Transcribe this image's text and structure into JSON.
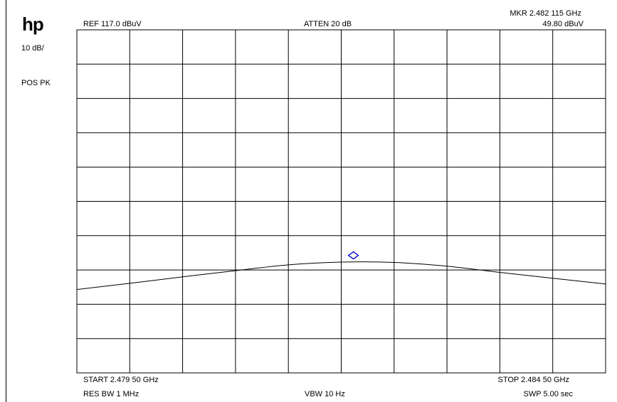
{
  "logo": "hp",
  "left_panel": {
    "scale": "10 dB/",
    "detector": "POS PK"
  },
  "header": {
    "ref_level": "REF  117.0 dBuV",
    "attenuation": "ATTEN 20 dB",
    "marker_freq": "MKR 2.482 115 GHz",
    "marker_level": "49.80 dBuV"
  },
  "footer": {
    "start": "START 2.479 50 GHz",
    "stop": "STOP 2.484 50 GHz",
    "rbw": "RES BW 1 MHz",
    "vbw": "VBW 10  Hz",
    "sweep": "SWP 5.00  sec"
  },
  "colors": {
    "grid": "#000000",
    "trace": "#000000",
    "marker": "#0000cc"
  },
  "chart_data": {
    "type": "line",
    "xlabel": "",
    "ylabel": "",
    "x_unit": "GHz",
    "y_unit": "dBuV",
    "xlim": [
      2.4795,
      2.4845
    ],
    "ylim": [
      17.0,
      117.0
    ],
    "divisions": {
      "x": 10,
      "y": 10
    },
    "grid": true,
    "series": [
      {
        "x": [
          2.4795,
          2.48,
          2.4805,
          2.481,
          2.4815,
          2.482,
          2.4825,
          2.483,
          2.4835,
          2.484,
          2.4845
        ],
        "y": [
          41.3,
          43.1,
          45.0,
          46.8,
          48.5,
          49.3,
          49.2,
          48.1,
          46.3,
          44.6,
          42.9
        ]
      }
    ],
    "marker": {
      "x": 2.482115,
      "y": 49.8
    }
  }
}
